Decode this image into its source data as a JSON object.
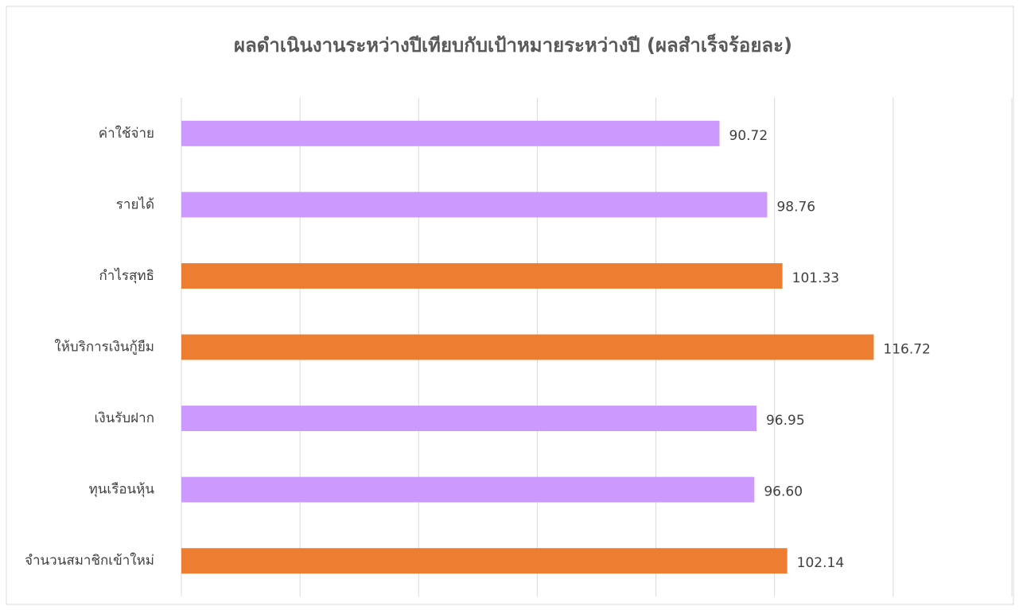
{
  "chart_data": {
    "type": "barh",
    "title": "ผลดำเนินงานระหว่างปีเทียบกับเป้าหมายระหว่างปี (ผลสำเร็จร้อยละ)",
    "categories": [
      "ค่าใช้จ่าย",
      "รายได้",
      "กำไรสุทธิ",
      "ให้บริการเงินกู้ยืม",
      "เงินรับฝาก",
      "ทุนเรือนหุ้น",
      "จำนวนสมาชิกเข้าใหม่"
    ],
    "values": [
      90.72,
      98.76,
      101.33,
      116.72,
      96.95,
      96.6,
      102.14
    ],
    "value_labels": [
      "90.72",
      "98.76",
      "101.33",
      "116.72",
      "96.95",
      "96.60",
      "102.14"
    ],
    "colors": [
      "#cc99ff",
      "#cc99ff",
      "#ed7d31",
      "#ed7d31",
      "#cc99ff",
      "#cc99ff",
      "#ed7d31"
    ],
    "xlim": [
      0,
      140
    ],
    "xticks": [
      0,
      20,
      40,
      60,
      80,
      100,
      120,
      140
    ],
    "grid": true
  }
}
